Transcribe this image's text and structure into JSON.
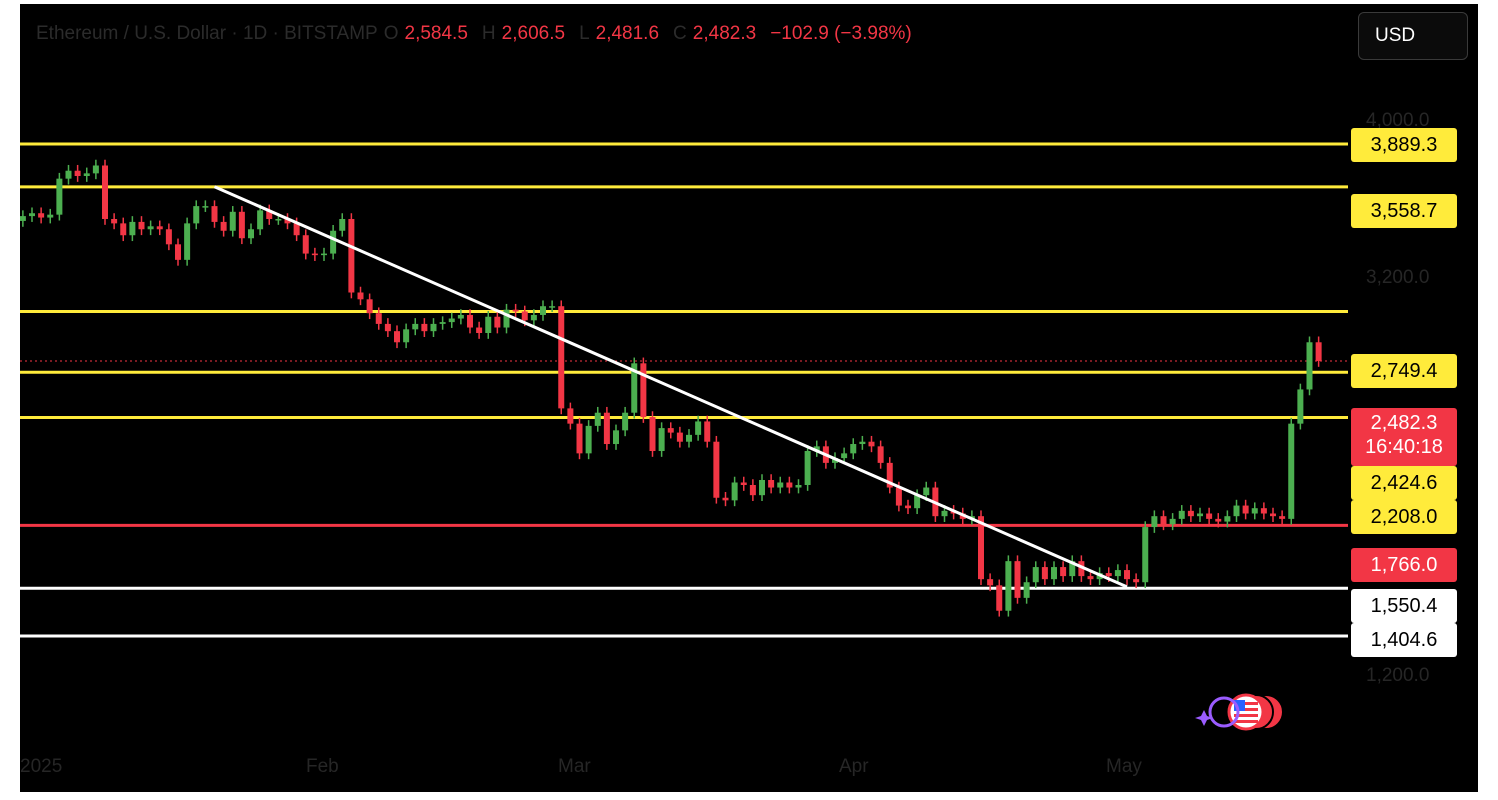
{
  "header": {
    "symbol": "Ethereum / U.S. Dollar · 1D · BITSTAMP",
    "open_label": "O",
    "open": "2,584.5",
    "high_label": "H",
    "high": "2,606.5",
    "low_label": "L",
    "low": "2,481.6",
    "close_label": "C",
    "close": "2,482.3",
    "change": "−102.9 (−3.98%)"
  },
  "currency_button": "USD",
  "colors": {
    "background": "#000000",
    "up": "#4caf50",
    "down": "#f23645",
    "level_yellow": "#ffeb3b",
    "level_red": "#f23645",
    "level_white": "#ffffff",
    "trendline": "#ffffff"
  },
  "price_tags": {
    "p3889": "3,889.3",
    "p3558": "3,558.7",
    "p2749": "2,749.4",
    "last_price": "2,482.3",
    "countdown": "16:40:18",
    "p2424": "2,424.6",
    "p2208": "2,208.0",
    "p1766": "1,766.0",
    "p1550": "1,550.4",
    "p1404": "1,404.6"
  },
  "chart_data": {
    "type": "candlestick",
    "scale": "log",
    "y_ticks": [
      "4,000.0",
      "3,200.0",
      "1,200.0"
    ],
    "y_tick_values": [
      4000,
      3200,
      1200
    ],
    "x_ticks": [
      "2025",
      "Feb",
      "Mar",
      "Apr",
      "May"
    ],
    "x_tick_dates": [
      "2025-01-01",
      "2025-02-01",
      "2025-03-01",
      "2025-04-01",
      "2025-05-01"
    ],
    "date_range": [
      "2024-12-31",
      "2025-05-08"
    ],
    "horizontal_levels": [
      {
        "price": 3889.3,
        "color": "yellow"
      },
      {
        "price": 3558.7,
        "color": "yellow"
      },
      {
        "price": 2749.4,
        "color": "yellow"
      },
      {
        "price": 2424.6,
        "color": "yellow"
      },
      {
        "price": 2208.0,
        "color": "yellow"
      },
      {
        "price": 1766.0,
        "color": "red"
      },
      {
        "price": 1550.4,
        "color": "white"
      },
      {
        "price": 1404.6,
        "color": "white"
      }
    ],
    "trendline": {
      "from": {
        "date": "2025-01-21",
        "price": 3560
      },
      "to": {
        "date": "2025-05-01",
        "price": 1555
      }
    },
    "closes": [
      3350,
      3370,
      3340,
      3360,
      3620,
      3680,
      3640,
      3660,
      3720,
      3330,
      3300,
      3220,
      3310,
      3260,
      3280,
      3260,
      3160,
      3060,
      3300,
      3420,
      3420,
      3310,
      3250,
      3380,
      3200,
      3260,
      3390,
      3330,
      3330,
      3300,
      3220,
      3100,
      3090,
      3100,
      3250,
      3330,
      2860,
      2820,
      2740,
      2680,
      2640,
      2580,
      2650,
      2680,
      2640,
      2680,
      2690,
      2710,
      2730,
      2660,
      2630,
      2720,
      2660,
      2760,
      2750,
      2700,
      2730,
      2780,
      2780,
      2250,
      2180,
      2050,
      2170,
      2230,
      2090,
      2150,
      2230,
      2470,
      2210,
      2060,
      2160,
      2140,
      2100,
      2130,
      2190,
      2100,
      1870,
      1860,
      1930,
      1920,
      1880,
      1940,
      1910,
      1930,
      1910,
      1920,
      2060,
      2080,
      2010,
      2030,
      2050,
      2090,
      2100,
      2080,
      2010,
      1910,
      1840,
      1830,
      1880,
      1910,
      1800,
      1820,
      1810,
      1790,
      1800,
      1580,
      1560,
      1480,
      1640,
      1520,
      1570,
      1620,
      1580,
      1620,
      1590,
      1640,
      1590,
      1580,
      1600,
      1590,
      1610,
      1580,
      1570,
      1760,
      1800,
      1770,
      1790,
      1820,
      1800,
      1810,
      1790,
      1780,
      1800,
      1840,
      1810,
      1830,
      1810,
      1800,
      1790,
      2180,
      2340,
      2580,
      2482
    ]
  }
}
